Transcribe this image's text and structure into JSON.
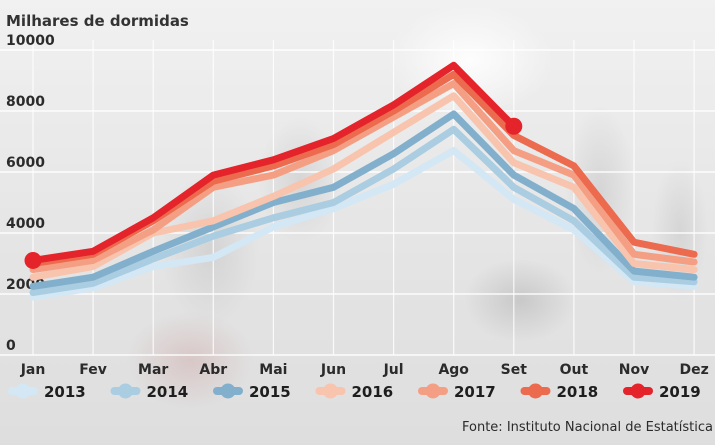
{
  "chart_data": {
    "type": "line",
    "title": "Milhares de dormidas",
    "xlabel": "",
    "ylabel": "",
    "categories": [
      "Jan",
      "Fev",
      "Mar",
      "Abr",
      "Mai",
      "Jun",
      "Jul",
      "Ago",
      "Set",
      "Out",
      "Nov",
      "Dez"
    ],
    "ylim": [
      0,
      10000
    ],
    "yticks": [
      "0",
      "2000",
      "4000",
      "6000",
      "8000",
      "10000"
    ],
    "ytick_values": [
      0,
      2000,
      4000,
      6000,
      8000,
      10000
    ],
    "grid": true,
    "legend_placement": "bottom",
    "series": [
      {
        "name": "2013",
        "color": "#d3e7f4",
        "values": [
          1900,
          2200,
          2900,
          3200,
          4200,
          4800,
          5600,
          6700,
          5100,
          4100,
          2400,
          2250
        ]
      },
      {
        "name": "2014",
        "color": "#aacde2",
        "values": [
          2050,
          2350,
          3150,
          3900,
          4500,
          5000,
          6100,
          7400,
          5500,
          4400,
          2550,
          2400
        ]
      },
      {
        "name": "2015",
        "color": "#82b0cc",
        "values": [
          2250,
          2550,
          3400,
          4200,
          5000,
          5500,
          6600,
          7900,
          5900,
          4800,
          2750,
          2550
        ]
      },
      {
        "name": "2016",
        "color": "#f8c4ad",
        "values": [
          2550,
          2900,
          4000,
          4400,
          5200,
          6100,
          7300,
          8500,
          6300,
          5500,
          3000,
          2800
        ]
      },
      {
        "name": "2017",
        "color": "#f49f84",
        "values": [
          2800,
          3100,
          4100,
          5500,
          5900,
          6700,
          7800,
          8900,
          6700,
          5900,
          3300,
          3050
        ]
      },
      {
        "name": "2018",
        "color": "#ec6a4e",
        "values": [
          3000,
          3300,
          4400,
          5700,
          6200,
          6900,
          8000,
          9200,
          7200,
          6200,
          3700,
          3300
        ]
      },
      {
        "name": "2019",
        "color": "#e4232a",
        "values": [
          3100,
          3400,
          4500,
          5900,
          6400,
          7100,
          8200,
          9500,
          7500,
          null,
          null,
          null
        ]
      }
    ],
    "source": "Fonte: Instituto Nacional de Estatística"
  }
}
